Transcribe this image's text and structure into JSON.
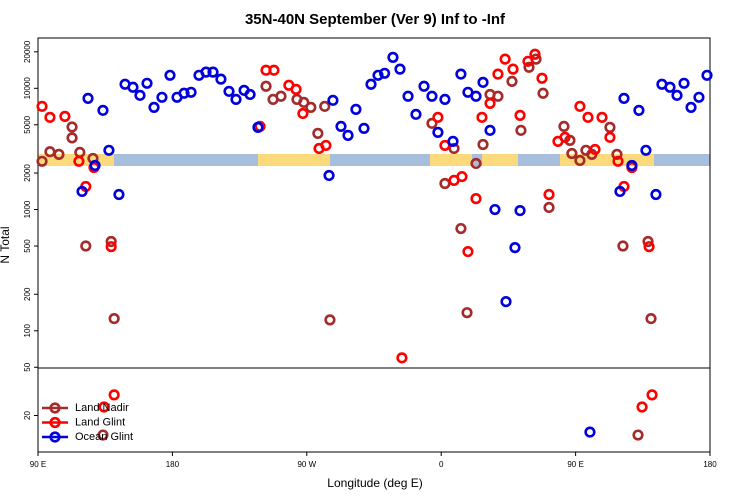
{
  "chart_data": {
    "type": "scatter",
    "title": "35N-40N September (Ver 9)   Inf to -Inf",
    "x_label": "Longitude (deg E)",
    "y_label": "N Total",
    "ylog": true,
    "legend": "lower left",
    "xlim": [
      90,
      540
    ],
    "xticks": [
      {
        "value": 90,
        "label": "90 E"
      },
      180,
      {
        "value": 270,
        "label": "90 W"
      },
      {
        "value": 360,
        "label": "0"
      },
      {
        "value": 450,
        "label": "90 E"
      },
      {
        "value": 540,
        "label": "180"
      }
    ],
    "ylim": [
      10,
      26000
    ],
    "yticks": [
      20,
      50,
      100,
      200,
      500,
      1000,
      2000,
      5000,
      10000,
      20000
    ],
    "series": [
      {
        "name": "Land Nadir",
        "color": "#a52a2a",
        "x": [
          92.7,
          98,
          104,
          112.8,
          112.8,
          118,
          126.8,
          122,
          139,
          141,
          133.5,
          242.7,
          247.4,
          252.7,
          263.4,
          268,
          272.7,
          277.4,
          282,
          285.5,
          353.8,
          362.5,
          368.6,
          373.2,
          377.3,
          383.3,
          388,
          392.7,
          398,
          407.4,
          413.4,
          418.8,
          423.5,
          428.2,
          432.2,
          442.2,
          446.2,
          447.5,
          452.9,
          456.9,
          460.9,
          473,
          477.7,
          481.7,
          498.5,
          500.5,
          491.8
        ],
        "values": [
          2500,
          3000,
          2850,
          4800,
          3900,
          2960,
          2640,
          500,
          545,
          126,
          13.8,
          10400,
          8100,
          8600,
          8100,
          7660,
          6960,
          4250,
          7100,
          123,
          5140,
          1640,
          3190,
          697,
          141,
          2400,
          3440,
          8900,
          8600,
          11400,
          4500,
          14900,
          17400,
          9100,
          1040,
          4850,
          3720,
          2900,
          2540,
          3080,
          2850,
          4760,
          2850,
          500,
          545,
          126,
          13.8
        ]
      },
      {
        "name": "Land Glint",
        "color": "#ff0000",
        "x": [
          92.7,
          98,
          108,
          117.4,
          122,
          127.5,
          139,
          141,
          134.2,
          238.7,
          242.7,
          248,
          258,
          262.8,
          267.4,
          278.2,
          282.8,
          333.7,
          357.8,
          362.5,
          368.6,
          373.9,
          383.3,
          377.9,
          387.3,
          392.7,
          398,
          402.8,
          408.1,
          412.8,
          418.1,
          422.8,
          427.5,
          432.2,
          438.2,
          442.9,
          452.9,
          458.3,
          463,
          467.7,
          473,
          478.4,
          482.4,
          487.7,
          499.2,
          501.2,
          494.5
        ],
        "values": [
          7100,
          5760,
          5870,
          2500,
          1550,
          2220,
          494,
          29.6,
          23.5,
          4850,
          14100,
          14100,
          10600,
          9800,
          6200,
          3190,
          3380,
          59.8,
          5760,
          3380,
          1740,
          1870,
          1230,
          450,
          5760,
          7510,
          13100,
          17400,
          14400,
          5980,
          16700,
          19100,
          12100,
          1330,
          3650,
          3940,
          7100,
          5760,
          3130,
          5760,
          3940,
          2500,
          1550,
          2220,
          494,
          29.6,
          23.5
        ]
      },
      {
        "name": "Ocean Glint",
        "color": "#0000dd",
        "x": [
          119.5,
          123.5,
          128.2,
          133.5,
          137.5,
          144.2,
          148.3,
          153.6,
          158.3,
          163,
          167.7,
          173,
          178.4,
          183.1,
          187.8,
          192.5,
          197.8,
          202.5,
          207.2,
          212.5,
          217.9,
          222.6,
          228,
          232,
          237.3,
          284.9,
          287.5,
          292.9,
          297.6,
          302.9,
          308.3,
          313,
          317.7,
          322.1,
          327.7,
          332.4,
          337.8,
          343.1,
          348.5,
          353.8,
          357.8,
          362.5,
          367.9,
          373.2,
          377.9,
          383.3,
          388,
          392.7,
          396,
          403.4,
          409.4,
          412.8,
          459.6,
          479.7,
          482.4,
          487.7,
          492.4,
          497.1,
          503.8,
          507.8,
          513.2,
          517.9,
          522.6,
          527.3,
          532.6,
          538
        ],
        "values": [
          1410,
          8260,
          2310,
          6580,
          3080,
          1330,
          10800,
          10200,
          8750,
          11000,
          6960,
          8430,
          12800,
          8430,
          9100,
          9270,
          12800,
          13600,
          13600,
          11900,
          9440,
          8100,
          9620,
          8900,
          4760,
          1910,
          7960,
          4850,
          4090,
          6700,
          4670,
          10800,
          12800,
          13300,
          18000,
          14400,
          8600,
          6100,
          10400,
          8600,
          4330,
          8100,
          3650,
          13100,
          9270,
          8600,
          11200,
          4500,
          1000,
          174,
          485,
          980,
          14.6,
          1410,
          8260,
          2310,
          6580,
          3080,
          1330,
          10800,
          10200,
          8750,
          11000,
          6960,
          8430,
          12800
        ]
      }
    ]
  }
}
